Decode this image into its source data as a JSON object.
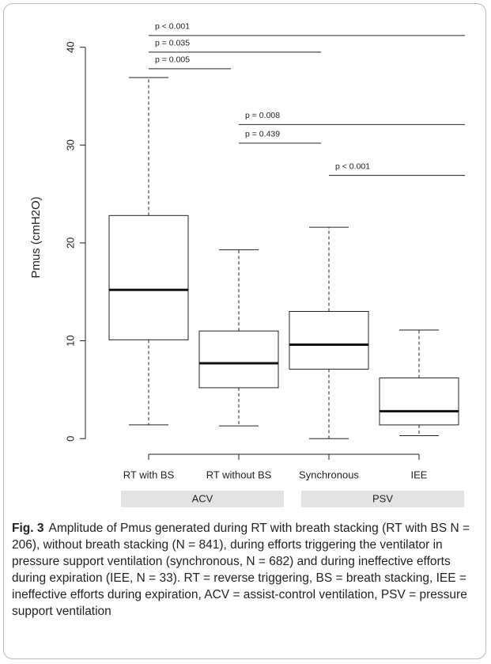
{
  "chart_data": {
    "type": "box",
    "ylabel": "Pmus (cmH2O)",
    "categories": [
      "RT with BS",
      "RT without BS",
      "Synchronous",
      "IEE"
    ],
    "boxes": [
      {
        "min": 1.4,
        "q1": 10.1,
        "median": 15.2,
        "q3": 22.8,
        "max": 36.9
      },
      {
        "min": 1.3,
        "q1": 5.2,
        "median": 7.7,
        "q3": 11.0,
        "max": 19.3
      },
      {
        "min": 0,
        "q1": 7.1,
        "median": 9.6,
        "q3": 13.0,
        "max": 21.6
      },
      {
        "min": 0.3,
        "q1": 1.4,
        "median": 2.8,
        "q3": 6.2,
        "max": 11.1
      }
    ],
    "ylim": [
      -1.6,
      42.4
    ],
    "yticks": [
      0,
      10,
      20,
      30,
      40
    ],
    "groups": [
      {
        "label": "ACV",
        "categories": [
          0,
          1
        ]
      },
      {
        "label": "PSV",
        "categories": [
          2,
          3
        ]
      }
    ],
    "annotations": [
      {
        "label": "p < 0.001",
        "y": 41.2,
        "from": 0,
        "to": 3
      },
      {
        "label": "p = 0.035",
        "y": 39.5,
        "from": 0,
        "to": 2
      },
      {
        "label": "p = 0.005",
        "y": 37.8,
        "from": 0,
        "to": 1
      },
      {
        "label": "p = 0.008",
        "y": 32.1,
        "from": 1,
        "to": 3
      },
      {
        "label": "p = 0.439",
        "y": 30.2,
        "from": 1,
        "to": 2
      },
      {
        "label": "p < 0.001",
        "y": 26.9,
        "from": 2,
        "to": 3
      }
    ]
  },
  "caption": {
    "label": "Fig. 3",
    "text": "Amplitude of Pmus generated during RT with breath stacking (RT with BS N = 206), without breath stacking (N = 841), during efforts triggering the ventilator in pressure support ventilation (synchronous, N = 682) and during ineffective efforts during expiration (IEE, N = 33). RT = reverse triggering, BS = breath stacking, IEE = ineffective efforts during expiration, ACV = assist-control ventilation, PSV = pressure support ventilation"
  }
}
